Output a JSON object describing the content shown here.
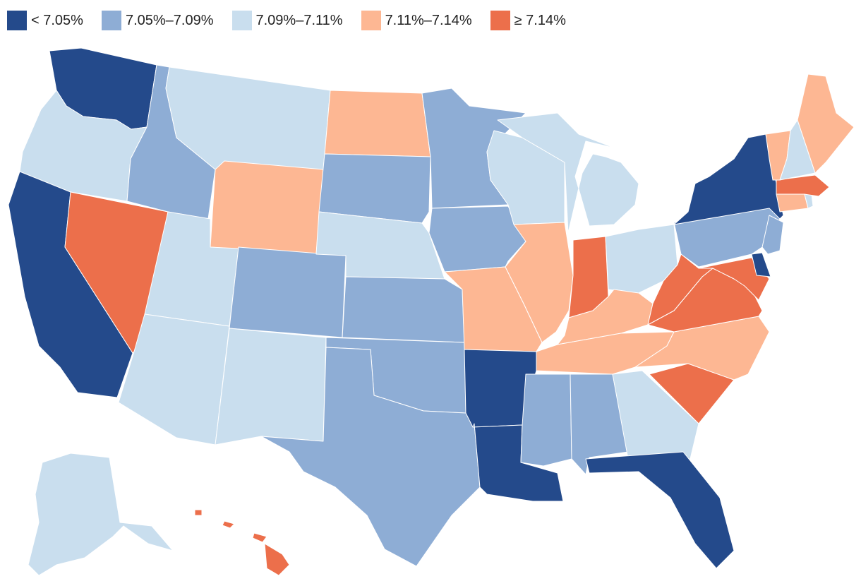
{
  "legend": {
    "bins": [
      {
        "label": "< 7.05%",
        "color": "#244a8b"
      },
      {
        "label": "7.05%–7.09%",
        "color": "#8eadd5"
      },
      {
        "label": "7.09%–7.11%",
        "color": "#c9deee"
      },
      {
        "label": "7.11%–7.14%",
        "color": "#fdb793"
      },
      {
        "label": "≥ 7.14%",
        "color": "#ec6f4b"
      }
    ]
  },
  "states": [
    {
      "id": "WA",
      "bin": 0
    },
    {
      "id": "OR",
      "bin": 2
    },
    {
      "id": "CA",
      "bin": 0
    },
    {
      "id": "NV",
      "bin": 4
    },
    {
      "id": "ID",
      "bin": 1
    },
    {
      "id": "MT",
      "bin": 2
    },
    {
      "id": "WY",
      "bin": 3
    },
    {
      "id": "UT",
      "bin": 2
    },
    {
      "id": "AZ",
      "bin": 2
    },
    {
      "id": "CO",
      "bin": 1
    },
    {
      "id": "NM",
      "bin": 2
    },
    {
      "id": "ND",
      "bin": 3
    },
    {
      "id": "SD",
      "bin": 1
    },
    {
      "id": "NE",
      "bin": 2
    },
    {
      "id": "KS",
      "bin": 1
    },
    {
      "id": "OK",
      "bin": 1
    },
    {
      "id": "TX",
      "bin": 1
    },
    {
      "id": "MN",
      "bin": 1
    },
    {
      "id": "IA",
      "bin": 1
    },
    {
      "id": "MO",
      "bin": 3
    },
    {
      "id": "AR",
      "bin": 0
    },
    {
      "id": "LA",
      "bin": 0
    },
    {
      "id": "WI",
      "bin": 2
    },
    {
      "id": "IL",
      "bin": 3
    },
    {
      "id": "MI",
      "bin": 2
    },
    {
      "id": "IN",
      "bin": 4
    },
    {
      "id": "OH",
      "bin": 2
    },
    {
      "id": "KY",
      "bin": 3
    },
    {
      "id": "TN",
      "bin": 3
    },
    {
      "id": "MS",
      "bin": 1
    },
    {
      "id": "AL",
      "bin": 1
    },
    {
      "id": "GA",
      "bin": 2
    },
    {
      "id": "FL",
      "bin": 0
    },
    {
      "id": "SC",
      "bin": 4
    },
    {
      "id": "NC",
      "bin": 3
    },
    {
      "id": "VA",
      "bin": 4
    },
    {
      "id": "WV",
      "bin": 4
    },
    {
      "id": "MD",
      "bin": 4
    },
    {
      "id": "DE",
      "bin": 0
    },
    {
      "id": "PA",
      "bin": 1
    },
    {
      "id": "NJ",
      "bin": 1
    },
    {
      "id": "NY",
      "bin": 0
    },
    {
      "id": "CT",
      "bin": 3
    },
    {
      "id": "RI",
      "bin": 2
    },
    {
      "id": "MA",
      "bin": 4
    },
    {
      "id": "VT",
      "bin": 3
    },
    {
      "id": "NH",
      "bin": 2
    },
    {
      "id": "ME",
      "bin": 3
    },
    {
      "id": "AK",
      "bin": 2
    },
    {
      "id": "HI",
      "bin": 4
    }
  ]
}
